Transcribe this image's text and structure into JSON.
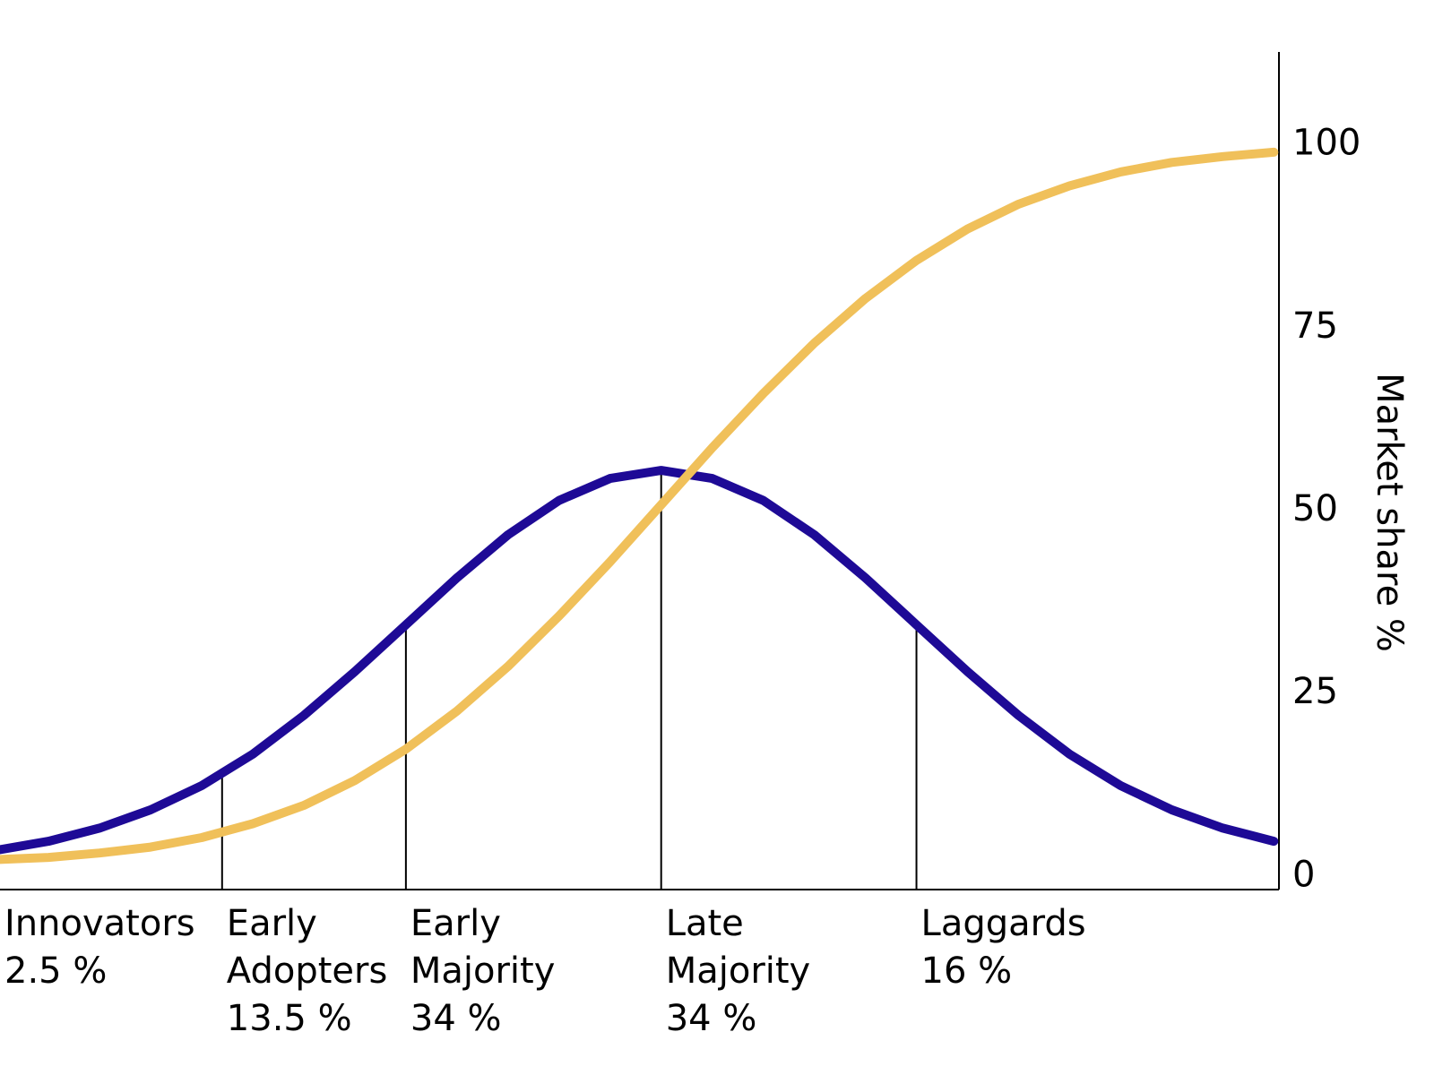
{
  "chart_data": {
    "type": "line",
    "y_label": "Market share %",
    "x": [
      -2.6,
      -2.4,
      -2.2,
      -2.0,
      -1.8,
      -1.6,
      -1.4,
      -1.2,
      -1.0,
      -0.8,
      -0.6,
      -0.4,
      -0.2,
      0,
      0.2,
      0.4,
      0.6,
      0.8,
      1.0,
      1.2,
      1.4,
      1.6,
      1.8,
      2.0,
      2.2,
      2.4
    ],
    "series": [
      {
        "color": "#1e0a96",
        "values": [
          3.6,
          4.8,
          6.6,
          9.1,
          12.4,
          16.7,
          22.0,
          28.0,
          34.4,
          40.8,
          46.7,
          51.4,
          54.4,
          55.5,
          54.4,
          51.4,
          46.7,
          40.8,
          34.4,
          28.0,
          22.0,
          16.7,
          12.4,
          9.1,
          6.6,
          4.8
        ]
      },
      {
        "color": "#f0c05a",
        "values": [
          2.3,
          2.6,
          3.2,
          4.0,
          5.3,
          7.2,
          9.7,
          13.1,
          17.4,
          22.6,
          28.7,
          35.6,
          43.0,
          50.8,
          58.6,
          66.0,
          72.9,
          79.0,
          84.2,
          88.5,
          91.9,
          94.4,
          96.3,
          97.6,
          98.4,
          99.0
        ]
      }
    ],
    "boundaries": [
      -1.72,
      -1.0,
      0,
      1.0
    ],
    "categories": [
      [
        "Innovators"
      ],
      [
        "Early",
        "Adopters"
      ],
      [
        "Early",
        "Majority"
      ],
      [
        "Late",
        "Majority"
      ],
      [
        "Laggards"
      ]
    ],
    "values": [
      2.5,
      13.5,
      34,
      34,
      16
    ],
    "value_labels": [
      "2.5 %",
      "13.5 %",
      "34 %",
      "34 %",
      "16 %"
    ],
    "xlim": [
      -2.59,
      2.42
    ],
    "ylim": [
      -1.8,
      112.7
    ],
    "yticks": [
      0,
      25,
      50,
      75,
      100
    ],
    "y_axis_side": "right"
  }
}
